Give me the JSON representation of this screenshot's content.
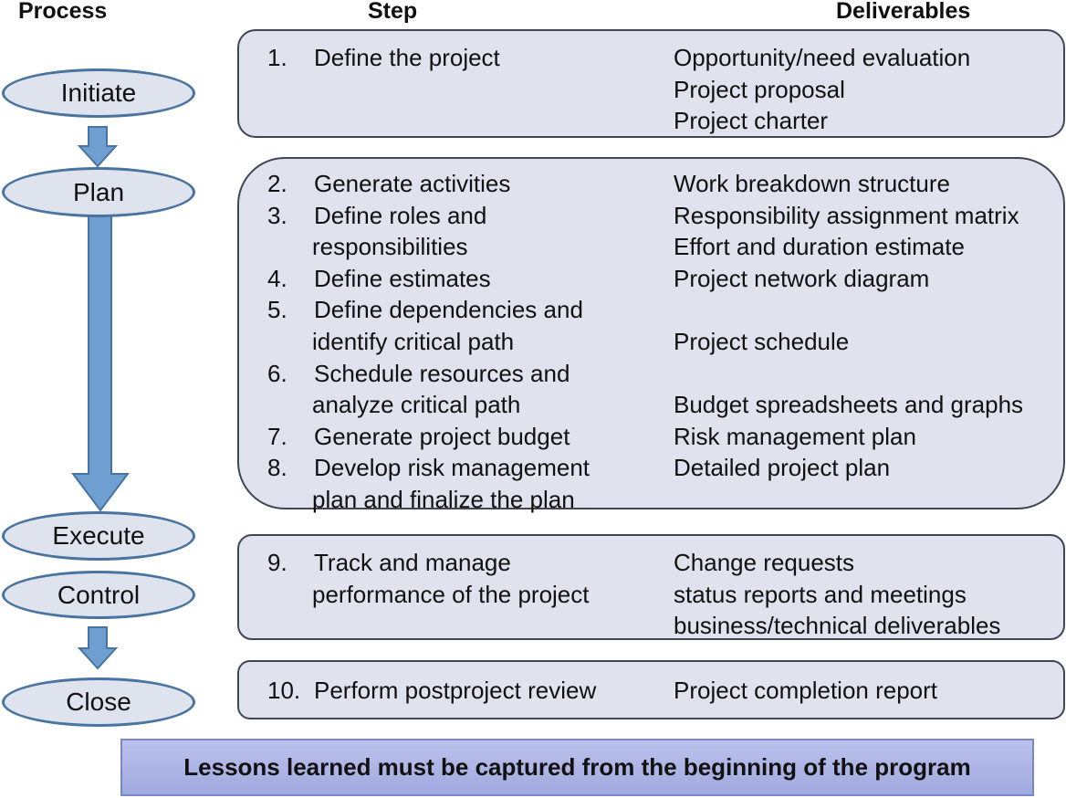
{
  "headers": {
    "process": "Process",
    "step": "Step",
    "deliverables": "Deliverables"
  },
  "process": [
    {
      "label": "Initiate"
    },
    {
      "label": "Plan"
    },
    {
      "label": "Execute"
    },
    {
      "label": "Control"
    },
    {
      "label": "Close"
    }
  ],
  "colors": {
    "ellipse_fill": "#dfe3ee",
    "ellipse_stroke": "#4a74a0",
    "arrow_fill": "#6f9fd0",
    "box_fill": "#e0e2ee",
    "box_stroke": "#3f4654",
    "banner_fill": "#aeb5e5"
  },
  "boxes": [
    {
      "rows": [
        {
          "num": "1.",
          "step": "Define the project",
          "deliverable": "Opportunity/need evaluation"
        },
        {
          "num": "",
          "step": "",
          "deliverable": "Project proposal"
        },
        {
          "num": "",
          "step": "",
          "deliverable": "Project charter"
        }
      ]
    },
    {
      "rows": [
        {
          "num": "2.",
          "step": "Generate activities",
          "deliverable": "Work breakdown structure"
        },
        {
          "num": "3.",
          "step": "Define roles and",
          "deliverable": "Responsibility assignment matrix"
        },
        {
          "num": "",
          "step": "responsibilities",
          "deliverable": "Effort and duration estimate"
        },
        {
          "num": "4.",
          "step": "Define estimates",
          "deliverable": "Project network diagram"
        },
        {
          "num": "5.",
          "step": "Define dependencies and",
          "deliverable": ""
        },
        {
          "num": "",
          "step": "identify critical path",
          "deliverable": "Project schedule"
        },
        {
          "num": "6.",
          "step": "Schedule resources and",
          "deliverable": ""
        },
        {
          "num": "",
          "step": "analyze critical path",
          "deliverable": "Budget spreadsheets and graphs"
        },
        {
          "num": "7.",
          "step": "Generate project budget",
          "deliverable": "Risk management plan"
        },
        {
          "num": "8.",
          "step": "Develop risk management",
          "deliverable": "Detailed project plan"
        },
        {
          "num": "",
          "step": "plan and finalize the plan",
          "deliverable": ""
        }
      ]
    },
    {
      "rows": [
        {
          "num": "9.",
          "step": "Track and manage",
          "deliverable": "Change requests"
        },
        {
          "num": "",
          "step": "performance of the project",
          "deliverable": "status reports and meetings"
        },
        {
          "num": "",
          "step": "",
          "deliverable": "business/technical deliverables"
        }
      ]
    },
    {
      "rows": [
        {
          "num": "10.",
          "step": "Perform postproject review",
          "deliverable": "Project completion report"
        }
      ]
    }
  ],
  "banner": "Lessons learned must be captured from the beginning of the program"
}
